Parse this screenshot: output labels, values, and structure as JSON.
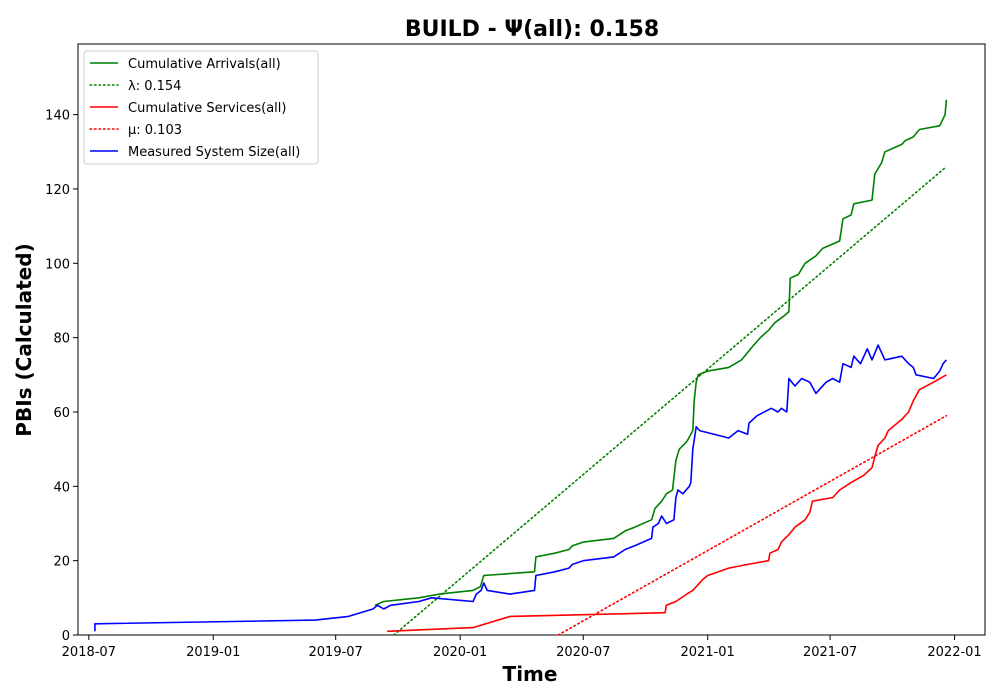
{
  "chart_data": {
    "type": "line",
    "title": "BUILD -  Ψ(all): 0.158",
    "xlabel": "Time",
    "ylabel": "PBIs (Calculated)",
    "xlim": [
      "2018-06-15",
      "2022-02-15"
    ],
    "ylim": [
      0,
      159
    ],
    "x_ticks": [
      "2018-07",
      "2019-01",
      "2019-07",
      "2020-01",
      "2020-07",
      "2021-01",
      "2021-07",
      "2022-01"
    ],
    "y_ticks": [
      0,
      20,
      40,
      60,
      80,
      100,
      120,
      140
    ],
    "grid": false,
    "legend_position": "top-left",
    "series": [
      {
        "name": "Cumulative Arrivals(all)",
        "color": "#008000",
        "style": "solid",
        "points": [
          [
            "2019-08-28",
            8
          ],
          [
            "2019-09-10",
            9
          ],
          [
            "2019-11-01",
            10
          ],
          [
            "2019-12-01",
            11
          ],
          [
            "2020-01-20",
            12
          ],
          [
            "2020-01-31",
            13
          ],
          [
            "2020-02-05",
            16
          ],
          [
            "2020-04-20",
            17
          ],
          [
            "2020-04-22",
            21
          ],
          [
            "2020-05-20",
            22
          ],
          [
            "2020-06-10",
            23
          ],
          [
            "2020-06-15",
            24
          ],
          [
            "2020-07-01",
            25
          ],
          [
            "2020-08-15",
            26
          ],
          [
            "2020-09-01",
            28
          ],
          [
            "2020-09-15",
            29
          ],
          [
            "2020-10-10",
            31
          ],
          [
            "2020-10-15",
            34
          ],
          [
            "2020-10-25",
            36
          ],
          [
            "2020-11-01",
            38
          ],
          [
            "2020-11-10",
            39
          ],
          [
            "2020-11-15",
            47
          ],
          [
            "2020-11-20",
            50
          ],
          [
            "2020-12-01",
            52
          ],
          [
            "2020-12-10",
            55
          ],
          [
            "2020-12-12",
            63
          ],
          [
            "2020-12-15",
            68
          ],
          [
            "2020-12-18",
            70
          ],
          [
            "2021-01-01",
            71
          ],
          [
            "2021-02-01",
            72
          ],
          [
            "2021-02-20",
            74
          ],
          [
            "2021-03-01",
            76
          ],
          [
            "2021-03-10",
            78
          ],
          [
            "2021-03-20",
            80
          ],
          [
            "2021-04-01",
            82
          ],
          [
            "2021-04-10",
            84
          ],
          [
            "2021-04-25",
            86
          ],
          [
            "2021-05-01",
            87
          ],
          [
            "2021-05-03",
            96
          ],
          [
            "2021-05-15",
            97
          ],
          [
            "2021-05-25",
            100
          ],
          [
            "2021-06-10",
            102
          ],
          [
            "2021-06-20",
            104
          ],
          [
            "2021-07-15",
            106
          ],
          [
            "2021-07-20",
            112
          ],
          [
            "2021-08-01",
            113
          ],
          [
            "2021-08-05",
            116
          ],
          [
            "2021-09-01",
            117
          ],
          [
            "2021-09-05",
            124
          ],
          [
            "2021-09-15",
            127
          ],
          [
            "2021-09-20",
            130
          ],
          [
            "2021-10-15",
            132
          ],
          [
            "2021-10-20",
            133
          ],
          [
            "2021-11-01",
            134
          ],
          [
            "2021-11-10",
            136
          ],
          [
            "2021-12-10",
            137
          ],
          [
            "2021-12-18",
            140
          ],
          [
            "2021-12-20",
            144
          ]
        ]
      },
      {
        "name": "λ: 0.154",
        "color": "#008000",
        "style": "dotted",
        "points": [
          [
            "2019-09-25",
            0
          ],
          [
            "2021-12-20",
            126
          ]
        ]
      },
      {
        "name": "Cumulative Services(all)",
        "color": "#ff0000",
        "style": "solid",
        "points": [
          [
            "2019-09-15",
            1
          ],
          [
            "2020-01-20",
            2
          ],
          [
            "2020-03-15",
            5
          ],
          [
            "2020-10-30",
            6
          ],
          [
            "2020-11-01",
            8
          ],
          [
            "2020-11-15",
            9
          ],
          [
            "2020-12-01",
            11
          ],
          [
            "2020-12-10",
            12
          ],
          [
            "2020-12-25",
            15
          ],
          [
            "2021-01-01",
            16
          ],
          [
            "2021-02-01",
            18
          ],
          [
            "2021-03-01",
            19
          ],
          [
            "2021-04-01",
            20
          ],
          [
            "2021-04-03",
            22
          ],
          [
            "2021-04-15",
            23
          ],
          [
            "2021-04-20",
            25
          ],
          [
            "2021-05-01",
            27
          ],
          [
            "2021-05-10",
            29
          ],
          [
            "2021-05-25",
            31
          ],
          [
            "2021-06-01",
            33
          ],
          [
            "2021-06-05",
            36
          ],
          [
            "2021-07-05",
            37
          ],
          [
            "2021-07-15",
            39
          ],
          [
            "2021-08-01",
            41
          ],
          [
            "2021-08-20",
            43
          ],
          [
            "2021-09-01",
            45
          ],
          [
            "2021-09-05",
            48
          ],
          [
            "2021-09-10",
            51
          ],
          [
            "2021-09-20",
            53
          ],
          [
            "2021-09-25",
            55
          ],
          [
            "2021-10-15",
            58
          ],
          [
            "2021-10-25",
            60
          ],
          [
            "2021-11-01",
            63
          ],
          [
            "2021-11-10",
            66
          ],
          [
            "2021-12-01",
            68
          ],
          [
            "2021-12-20",
            70
          ]
        ]
      },
      {
        "name": "μ: 0.103",
        "color": "#ff0000",
        "style": "dotted",
        "points": [
          [
            "2020-05-25",
            0
          ],
          [
            "2021-12-20",
            59
          ]
        ]
      },
      {
        "name": "Measured System Size(all)",
        "color": "#0000ff",
        "style": "solid",
        "points": [
          [
            "2018-07-10",
            1
          ],
          [
            "2018-07-10",
            3
          ],
          [
            "2019-06-01",
            4
          ],
          [
            "2019-07-20",
            5
          ],
          [
            "2019-08-25",
            7
          ],
          [
            "2019-09-01",
            8
          ],
          [
            "2019-09-10",
            7
          ],
          [
            "2019-09-20",
            8
          ],
          [
            "2019-11-01",
            9
          ],
          [
            "2019-11-20",
            10
          ],
          [
            "2020-01-20",
            9
          ],
          [
            "2020-01-25",
            11
          ],
          [
            "2020-02-01",
            12
          ],
          [
            "2020-02-05",
            14
          ],
          [
            "2020-02-10",
            12
          ],
          [
            "2020-03-15",
            11
          ],
          [
            "2020-04-20",
            12
          ],
          [
            "2020-04-22",
            16
          ],
          [
            "2020-05-20",
            17
          ],
          [
            "2020-06-10",
            18
          ],
          [
            "2020-06-15",
            19
          ],
          [
            "2020-07-01",
            20
          ],
          [
            "2020-08-15",
            21
          ],
          [
            "2020-09-01",
            23
          ],
          [
            "2020-09-15",
            24
          ],
          [
            "2020-10-10",
            26
          ],
          [
            "2020-10-12",
            29
          ],
          [
            "2020-10-20",
            30
          ],
          [
            "2020-10-25",
            32
          ],
          [
            "2020-11-01",
            30
          ],
          [
            "2020-11-12",
            31
          ],
          [
            "2020-11-15",
            37
          ],
          [
            "2020-11-18",
            39
          ],
          [
            "2020-11-25",
            38
          ],
          [
            "2020-12-05",
            40
          ],
          [
            "2020-12-07",
            41
          ],
          [
            "2020-12-10",
            50
          ],
          [
            "2020-12-15",
            56
          ],
          [
            "2020-12-20",
            55
          ],
          [
            "2021-02-01",
            53
          ],
          [
            "2021-02-15",
            55
          ],
          [
            "2021-03-01",
            54
          ],
          [
            "2021-03-03",
            57
          ],
          [
            "2021-03-15",
            59
          ],
          [
            "2021-04-05",
            61
          ],
          [
            "2021-04-15",
            60
          ],
          [
            "2021-04-20",
            61
          ],
          [
            "2021-04-28",
            60
          ],
          [
            "2021-05-01",
            69
          ],
          [
            "2021-05-10",
            67
          ],
          [
            "2021-05-20",
            69
          ],
          [
            "2021-06-01",
            68
          ],
          [
            "2021-06-10",
            65
          ],
          [
            "2021-06-25",
            68
          ],
          [
            "2021-07-05",
            69
          ],
          [
            "2021-07-15",
            68
          ],
          [
            "2021-07-20",
            73
          ],
          [
            "2021-08-01",
            72
          ],
          [
            "2021-08-05",
            75
          ],
          [
            "2021-08-15",
            73
          ],
          [
            "2021-08-25",
            77
          ],
          [
            "2021-09-01",
            74
          ],
          [
            "2021-09-10",
            78
          ],
          [
            "2021-09-20",
            74
          ],
          [
            "2021-10-15",
            75
          ],
          [
            "2021-10-25",
            73
          ],
          [
            "2021-11-01",
            72
          ],
          [
            "2021-11-05",
            70
          ],
          [
            "2021-12-01",
            69
          ],
          [
            "2021-12-10",
            71
          ],
          [
            "2021-12-15",
            73
          ],
          [
            "2021-12-20",
            74
          ]
        ]
      }
    ]
  }
}
